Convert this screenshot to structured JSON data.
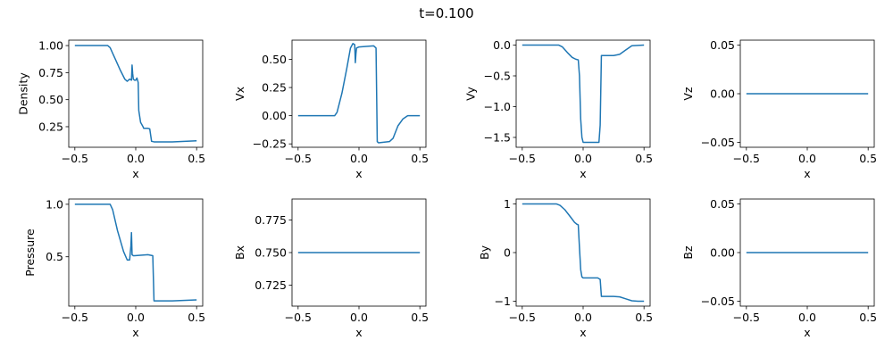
{
  "figure": {
    "title": "t=0.100",
    "line_color": "#1f77b4"
  },
  "chart_data": [
    {
      "type": "line",
      "title": "",
      "xlabel": "x",
      "ylabel": "Density",
      "xlim": [
        -0.55,
        0.55
      ],
      "ylim": [
        0.06,
        1.05
      ],
      "xticks": [
        -0.5,
        0.0,
        0.5
      ],
      "xtick_labels": [
        "−0.5",
        "0.0",
        "0.5"
      ],
      "yticks": [
        0.25,
        0.5,
        0.75,
        1.0
      ],
      "ytick_labels": [
        "0.25",
        "0.50",
        "0.75",
        "1.00"
      ],
      "grid": false,
      "series": [
        {
          "x": [
            -0.5,
            -0.23,
            -0.21,
            -0.17,
            -0.13,
            -0.09,
            -0.07,
            -0.05,
            -0.035,
            -0.03,
            -0.025,
            -0.02,
            -0.01,
            0.0,
            0.01,
            0.02,
            0.025,
            0.04,
            0.06,
            0.065,
            0.1,
            0.115,
            0.13,
            0.15,
            0.3,
            0.5
          ],
          "y": [
            1.0,
            1.0,
            0.98,
            0.88,
            0.78,
            0.69,
            0.67,
            0.69,
            0.68,
            0.82,
            0.74,
            0.69,
            0.68,
            0.68,
            0.7,
            0.66,
            0.4,
            0.29,
            0.25,
            0.235,
            0.235,
            0.23,
            0.115,
            0.11,
            0.11,
            0.12
          ]
        }
      ]
    },
    {
      "type": "line",
      "title": "",
      "xlabel": "x",
      "ylabel": "Vx",
      "xlim": [
        -0.55,
        0.55
      ],
      "ylim": [
        -0.28,
        0.67
      ],
      "xticks": [
        -0.5,
        0.0,
        0.5
      ],
      "xtick_labels": [
        "−0.5",
        "0.0",
        "0.5"
      ],
      "yticks": [
        -0.25,
        0.0,
        0.25,
        0.5
      ],
      "ytick_labels": [
        "−0.25",
        "0.00",
        "0.25",
        "0.50"
      ],
      "grid": false,
      "series": [
        {
          "x": [
            -0.5,
            -0.2,
            -0.18,
            -0.14,
            -0.1,
            -0.07,
            -0.05,
            -0.035,
            -0.03,
            -0.025,
            -0.02,
            0.0,
            0.12,
            0.14,
            0.15,
            0.16,
            0.25,
            0.28,
            0.32,
            0.36,
            0.4,
            0.5
          ],
          "y": [
            0.0,
            0.0,
            0.03,
            0.2,
            0.42,
            0.6,
            0.64,
            0.63,
            0.47,
            0.55,
            0.6,
            0.61,
            0.62,
            0.6,
            -0.23,
            -0.24,
            -0.23,
            -0.2,
            -0.09,
            -0.03,
            0.0,
            0.0
          ]
        }
      ]
    },
    {
      "type": "line",
      "title": "",
      "xlabel": "x",
      "ylabel": "Vy",
      "xlim": [
        -0.55,
        0.55
      ],
      "ylim": [
        -1.66,
        0.08
      ],
      "xticks": [
        -0.5,
        0.0,
        0.5
      ],
      "xtick_labels": [
        "−0.5",
        "0.0",
        "0.5"
      ],
      "yticks": [
        -1.5,
        -1.0,
        -0.5,
        0.0
      ],
      "ytick_labels": [
        "−1.5",
        "−1.0",
        "−0.5",
        "0.0"
      ],
      "grid": false,
      "series": [
        {
          "x": [
            -0.5,
            -0.2,
            -0.17,
            -0.13,
            -0.09,
            -0.06,
            -0.04,
            -0.03,
            -0.02,
            -0.01,
            0.0,
            0.13,
            0.14,
            0.15,
            0.25,
            0.3,
            0.35,
            0.4,
            0.5
          ],
          "y": [
            0.0,
            0.0,
            -0.03,
            -0.12,
            -0.2,
            -0.23,
            -0.24,
            -0.5,
            -1.2,
            -1.5,
            -1.58,
            -1.58,
            -1.3,
            -0.17,
            -0.17,
            -0.15,
            -0.08,
            -0.01,
            0.0
          ]
        }
      ]
    },
    {
      "type": "line",
      "title": "",
      "xlabel": "x",
      "ylabel": "Vz",
      "xlim": [
        -0.55,
        0.55
      ],
      "ylim": [
        -0.055,
        0.055
      ],
      "xticks": [
        -0.5,
        0.0,
        0.5
      ],
      "xtick_labels": [
        "−0.5",
        "0.0",
        "0.5"
      ],
      "yticks": [
        -0.05,
        0.0,
        0.05
      ],
      "ytick_labels": [
        "−0.05",
        "0.00",
        "0.05"
      ],
      "grid": false,
      "series": [
        {
          "x": [
            -0.5,
            0.5
          ],
          "y": [
            0.0,
            0.0
          ]
        }
      ]
    },
    {
      "type": "line",
      "title": "",
      "xlabel": "x",
      "ylabel": "Pressure",
      "xlim": [
        -0.55,
        0.55
      ],
      "ylim": [
        0.03,
        1.05
      ],
      "xticks": [
        -0.5,
        0.0,
        0.5
      ],
      "xtick_labels": [
        "−0.5",
        "0.0",
        "0.5"
      ],
      "yticks": [
        0.5,
        1.0
      ],
      "ytick_labels": [
        "0.5",
        "1.0"
      ],
      "grid": false,
      "series": [
        {
          "x": [
            -0.5,
            -0.21,
            -0.19,
            -0.15,
            -0.1,
            -0.07,
            -0.05,
            -0.04,
            -0.035,
            -0.03,
            -0.02,
            -0.01,
            0.1,
            0.14,
            0.15,
            0.3,
            0.5
          ],
          "y": [
            1.0,
            1.0,
            0.95,
            0.75,
            0.55,
            0.47,
            0.47,
            0.6,
            0.73,
            0.52,
            0.51,
            0.51,
            0.52,
            0.51,
            0.08,
            0.08,
            0.09
          ]
        }
      ]
    },
    {
      "type": "line",
      "title": "",
      "xlabel": "x",
      "ylabel": "Bx",
      "xlim": [
        -0.55,
        0.55
      ],
      "ylim": [
        0.709,
        0.791
      ],
      "xticks": [
        -0.5,
        0.0,
        0.5
      ],
      "xtick_labels": [
        "−0.5",
        "0.0",
        "0.5"
      ],
      "yticks": [
        0.725,
        0.75,
        0.775
      ],
      "ytick_labels": [
        "0.725",
        "0.750",
        "0.775"
      ],
      "grid": false,
      "series": [
        {
          "x": [
            -0.5,
            0.5
          ],
          "y": [
            0.75,
            0.75
          ]
        }
      ]
    },
    {
      "type": "line",
      "title": "",
      "xlabel": "x",
      "ylabel": "By",
      "xlim": [
        -0.55,
        0.55
      ],
      "ylim": [
        -1.1,
        1.1
      ],
      "xticks": [
        -0.5,
        0.0,
        0.5
      ],
      "xtick_labels": [
        "−0.5",
        "0.0",
        "0.5"
      ],
      "yticks": [
        -1,
        0,
        1
      ],
      "ytick_labels": [
        "−1",
        "0",
        "1"
      ],
      "grid": false,
      "series": [
        {
          "x": [
            -0.5,
            -0.22,
            -0.19,
            -0.15,
            -0.1,
            -0.07,
            -0.05,
            -0.04,
            -0.03,
            -0.02,
            -0.01,
            0.0,
            0.12,
            0.14,
            0.15,
            0.25,
            0.3,
            0.35,
            0.4,
            0.45,
            0.5
          ],
          "y": [
            1.0,
            1.0,
            0.97,
            0.88,
            0.72,
            0.62,
            0.58,
            0.57,
            0.1,
            -0.35,
            -0.5,
            -0.52,
            -0.52,
            -0.55,
            -0.9,
            -0.9,
            -0.91,
            -0.95,
            -0.99,
            -1.0,
            -1.0
          ]
        }
      ]
    },
    {
      "type": "line",
      "title": "",
      "xlabel": "x",
      "ylabel": "Bz",
      "xlim": [
        -0.55,
        0.55
      ],
      "ylim": [
        -0.055,
        0.055
      ],
      "xticks": [
        -0.5,
        0.0,
        0.5
      ],
      "xtick_labels": [
        "−0.5",
        "0.0",
        "0.5"
      ],
      "yticks": [
        -0.05,
        0.0,
        0.05
      ],
      "ytick_labels": [
        "−0.05",
        "0.00",
        "0.05"
      ],
      "grid": false,
      "series": [
        {
          "x": [
            -0.5,
            0.5
          ],
          "y": [
            0.0,
            0.0
          ]
        }
      ]
    }
  ]
}
